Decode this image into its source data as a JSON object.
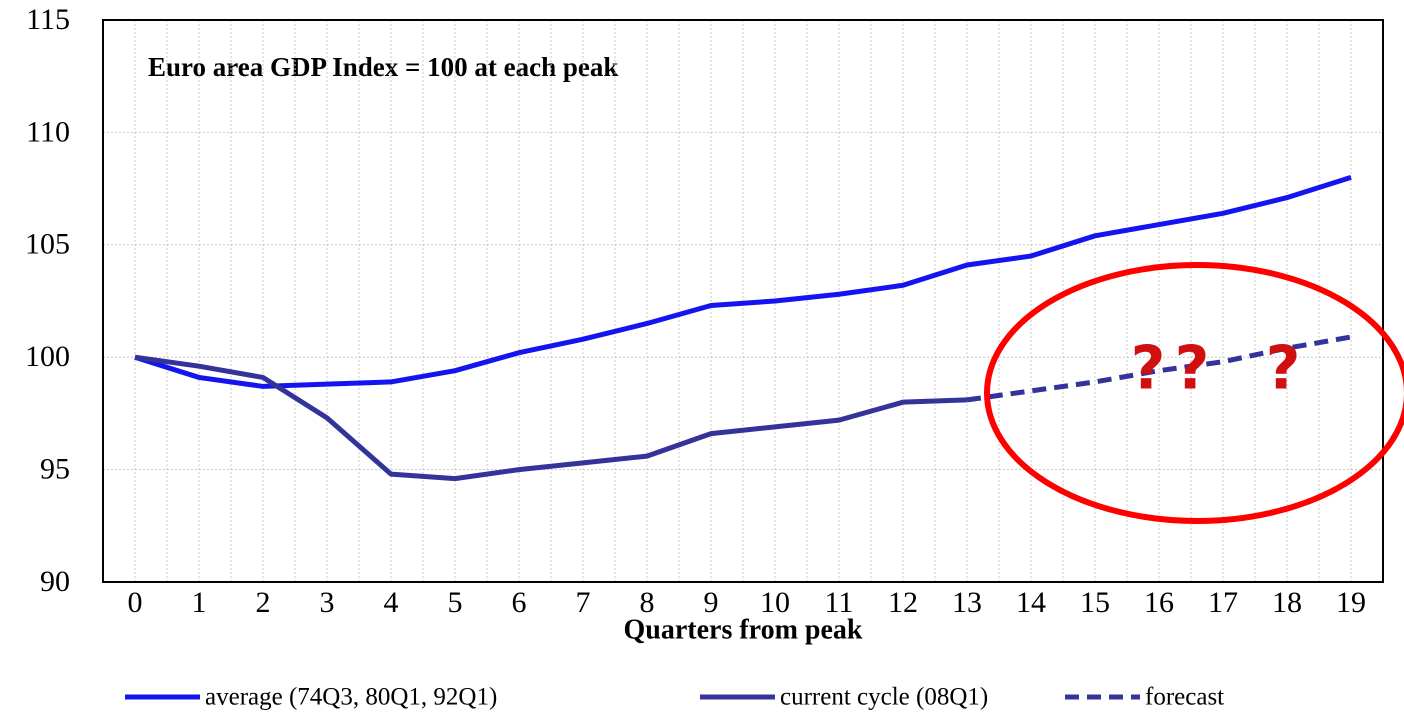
{
  "chart_data": {
    "type": "line",
    "title": "Euro area GDP Index = 100 at each peak",
    "x_label": "Quarters from peak",
    "categories": [
      "0",
      "1",
      "2",
      "3",
      "4",
      "5",
      "6",
      "7",
      "8",
      "9",
      "10",
      "11",
      "12",
      "13",
      "14",
      "15",
      "16",
      "17",
      "18",
      "19"
    ],
    "series": [
      {
        "name": "average (74Q3, 80Q1, 92Q1)",
        "color": "#1414f0",
        "dash": false,
        "values": [
          100,
          99.1,
          98.7,
          98.8,
          98.9,
          99.4,
          100.2,
          100.8,
          101.5,
          102.3,
          102.5,
          102.8,
          103.2,
          104.1,
          104.5,
          105.4,
          105.9,
          106.4,
          107.1,
          108.0
        ]
      },
      {
        "name": "current cycle (08Q1)",
        "color": "#333399",
        "dash": false,
        "values": [
          100,
          99.6,
          99.1,
          97.3,
          94.8,
          94.6,
          95.0,
          95.3,
          95.6,
          96.6,
          96.9,
          97.2,
          98.0,
          98.1,
          null,
          null,
          null,
          null,
          null,
          null
        ]
      },
      {
        "name": "forecast",
        "color": "#333399",
        "dash": true,
        "values": [
          null,
          null,
          null,
          null,
          null,
          null,
          null,
          null,
          null,
          null,
          null,
          null,
          null,
          98.1,
          98.5,
          98.9,
          99.4,
          99.8,
          100.4,
          100.9
        ]
      }
    ],
    "annotations": [
      "?",
      "?",
      "?"
    ],
    "ylim": [
      90,
      115
    ],
    "yticks": [
      90,
      95,
      100,
      105,
      110,
      115
    ],
    "grid": true
  }
}
